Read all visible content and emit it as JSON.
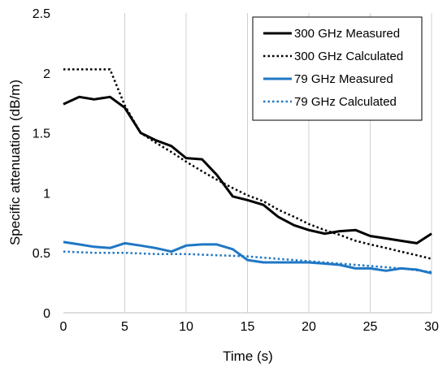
{
  "chart_data": {
    "type": "line",
    "title": "",
    "xlabel": "Time (s)",
    "ylabel": "Specific attenuation (dB/m)",
    "xlim": [
      0,
      30
    ],
    "ylim": [
      0,
      2.5
    ],
    "xticks": [
      0,
      5,
      10,
      15,
      20,
      25,
      30
    ],
    "yticks": [
      0,
      0.5,
      1,
      1.5,
      2,
      2.5
    ],
    "xtick_labels": [
      "0",
      "5",
      "10",
      "15",
      "20",
      "25",
      "30"
    ],
    "ytick_labels": [
      "0",
      "0.5",
      "1",
      "1.5",
      "2",
      "2.5"
    ],
    "grid": "vertical",
    "legend_position": "top-right",
    "series": [
      {
        "name": "300 GHz Measured",
        "color": "#000000",
        "style": "solid",
        "x": [
          0,
          1.3,
          2.5,
          3.8,
          5,
          6.3,
          7.5,
          8.8,
          10,
          11.3,
          12.5,
          13.8,
          15,
          16.3,
          17.5,
          18.8,
          20,
          21.3,
          22.5,
          23.8,
          25,
          26.3,
          27.5,
          28.8,
          30
        ],
        "y": [
          1.74,
          1.8,
          1.78,
          1.8,
          1.71,
          1.5,
          1.44,
          1.39,
          1.29,
          1.28,
          1.15,
          0.97,
          0.94,
          0.9,
          0.8,
          0.73,
          0.69,
          0.66,
          0.68,
          0.69,
          0.64,
          0.62,
          0.6,
          0.58,
          0.66
        ]
      },
      {
        "name": "300 GHz Calculated",
        "color": "#000000",
        "style": "dotted",
        "x": [
          0,
          1.3,
          2.5,
          3.8,
          5,
          6.3,
          7.5,
          8.8,
          10,
          11.3,
          12.5,
          13.8,
          15,
          16.3,
          17.5,
          18.8,
          20,
          21.3,
          22.5,
          23.8,
          25,
          26.3,
          27.5,
          28.8,
          30
        ],
        "y": [
          2.03,
          2.03,
          2.03,
          2.03,
          1.73,
          1.5,
          1.42,
          1.34,
          1.26,
          1.18,
          1.11,
          1.04,
          0.98,
          0.93,
          0.86,
          0.8,
          0.74,
          0.69,
          0.65,
          0.6,
          0.57,
          0.54,
          0.51,
          0.48,
          0.45
        ]
      },
      {
        "name": "79 GHz Measured",
        "color": "#1f77c4",
        "style": "solid",
        "x": [
          0,
          1.3,
          2.5,
          3.8,
          5,
          6.3,
          7.5,
          8.8,
          10,
          11.3,
          12.5,
          13.8,
          15,
          16.3,
          17.5,
          18.8,
          20,
          21.3,
          22.5,
          23.8,
          25,
          26.3,
          27.5,
          28.8,
          30
        ],
        "y": [
          0.59,
          0.57,
          0.55,
          0.54,
          0.58,
          0.56,
          0.54,
          0.51,
          0.56,
          0.57,
          0.57,
          0.53,
          0.44,
          0.42,
          0.42,
          0.42,
          0.42,
          0.41,
          0.4,
          0.37,
          0.37,
          0.35,
          0.37,
          0.36,
          0.33
        ]
      },
      {
        "name": "79 GHz Calculated",
        "color": "#1f77c4",
        "style": "dotted",
        "x": [
          0,
          2.5,
          5,
          7.5,
          10,
          12.5,
          15,
          17.5,
          20,
          22.5,
          25,
          27.5,
          30
        ],
        "y": [
          0.51,
          0.5,
          0.5,
          0.49,
          0.49,
          0.48,
          0.47,
          0.45,
          0.43,
          0.41,
          0.39,
          0.37,
          0.34
        ]
      }
    ]
  }
}
